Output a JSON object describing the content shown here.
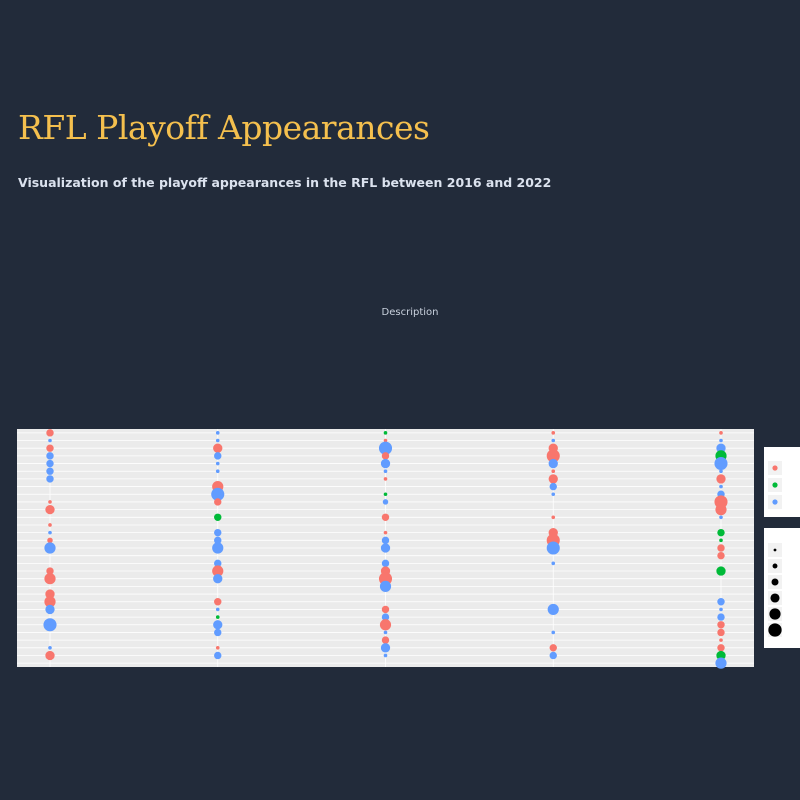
{
  "page": {
    "title": "RFL Playoff Appearances",
    "subtitle": "Visualization of the playoff appearances in the RFL between 2016 and 2022",
    "description": "Description"
  },
  "colors": {
    "background": "#222b3a",
    "title": "#f5c04e",
    "panel": "#ebebeb",
    "color_a": "#f8766d",
    "color_b": "#00ba38",
    "color_c": "#619cff"
  },
  "chart_data": {
    "type": "scatter",
    "title": "",
    "xlabel": "",
    "ylabel": "",
    "x_categories": [
      "",
      "",
      "",
      "",
      ""
    ],
    "y_level_count": 31,
    "ylim": [
      0.5,
      31.5
    ],
    "grid": true,
    "legend_placement": "right",
    "color_legend": {
      "title": "",
      "entries": [
        {
          "key": "a",
          "label": "",
          "color": "#f8766d"
        },
        {
          "key": "b",
          "label": "",
          "color": "#00ba38"
        },
        {
          "key": "c",
          "label": "",
          "color": "#619cff"
        }
      ]
    },
    "size_legend": {
      "title": "",
      "entries": [
        {
          "label": "",
          "size": 1
        },
        {
          "label": "",
          "size": 2
        },
        {
          "label": "",
          "size": 3
        },
        {
          "label": "",
          "size": 4
        },
        {
          "label": "",
          "size": 5
        },
        {
          "label": "",
          "size": 6
        }
      ]
    },
    "points": [
      {
        "x": 1,
        "y": 31,
        "c": "a",
        "s": 3
      },
      {
        "x": 1,
        "y": 30,
        "c": "c",
        "s": 1
      },
      {
        "x": 1,
        "y": 29,
        "c": "a",
        "s": 3
      },
      {
        "x": 1,
        "y": 28,
        "c": "c",
        "s": 3
      },
      {
        "x": 1,
        "y": 27,
        "c": "c",
        "s": 3
      },
      {
        "x": 1,
        "y": 26,
        "c": "c",
        "s": 3
      },
      {
        "x": 1,
        "y": 25,
        "c": "c",
        "s": 3
      },
      {
        "x": 1,
        "y": 22,
        "c": "a",
        "s": 1
      },
      {
        "x": 1,
        "y": 21,
        "c": "a",
        "s": 4
      },
      {
        "x": 1,
        "y": 19,
        "c": "a",
        "s": 1
      },
      {
        "x": 1,
        "y": 18,
        "c": "c",
        "s": 1
      },
      {
        "x": 1,
        "y": 17,
        "c": "a",
        "s": 2
      },
      {
        "x": 1,
        "y": 16,
        "c": "c",
        "s": 5
      },
      {
        "x": 1,
        "y": 13,
        "c": "a",
        "s": 3
      },
      {
        "x": 1,
        "y": 12,
        "c": "a",
        "s": 5
      },
      {
        "x": 1,
        "y": 10,
        "c": "a",
        "s": 4
      },
      {
        "x": 1,
        "y": 9,
        "c": "a",
        "s": 5
      },
      {
        "x": 1,
        "y": 8,
        "c": "c",
        "s": 4
      },
      {
        "x": 1,
        "y": 6,
        "c": "c",
        "s": 6
      },
      {
        "x": 1,
        "y": 3,
        "c": "c",
        "s": 1
      },
      {
        "x": 1,
        "y": 2,
        "c": "a",
        "s": 4
      },
      {
        "x": 2,
        "y": 31,
        "c": "c",
        "s": 1
      },
      {
        "x": 2,
        "y": 30,
        "c": "c",
        "s": 1
      },
      {
        "x": 2,
        "y": 29,
        "c": "a",
        "s": 4
      },
      {
        "x": 2,
        "y": 28,
        "c": "c",
        "s": 3
      },
      {
        "x": 2,
        "y": 27,
        "c": "c",
        "s": 1
      },
      {
        "x": 2,
        "y": 26,
        "c": "c",
        "s": 1
      },
      {
        "x": 2,
        "y": 24,
        "c": "a",
        "s": 5
      },
      {
        "x": 2,
        "y": 23,
        "c": "c",
        "s": 6
      },
      {
        "x": 2,
        "y": 22,
        "c": "a",
        "s": 3
      },
      {
        "x": 2,
        "y": 20,
        "c": "b",
        "s": 3
      },
      {
        "x": 2,
        "y": 18,
        "c": "c",
        "s": 3
      },
      {
        "x": 2,
        "y": 17,
        "c": "c",
        "s": 3
      },
      {
        "x": 2,
        "y": 16,
        "c": "c",
        "s": 5
      },
      {
        "x": 2,
        "y": 14,
        "c": "c",
        "s": 3
      },
      {
        "x": 2,
        "y": 13,
        "c": "a",
        "s": 5
      },
      {
        "x": 2,
        "y": 12,
        "c": "c",
        "s": 4
      },
      {
        "x": 2,
        "y": 9,
        "c": "a",
        "s": 3
      },
      {
        "x": 2,
        "y": 8,
        "c": "c",
        "s": 1
      },
      {
        "x": 2,
        "y": 7,
        "c": "b",
        "s": 1
      },
      {
        "x": 2,
        "y": 6,
        "c": "c",
        "s": 4
      },
      {
        "x": 2,
        "y": 5,
        "c": "c",
        "s": 3
      },
      {
        "x": 2,
        "y": 3,
        "c": "a",
        "s": 1
      },
      {
        "x": 2,
        "y": 2,
        "c": "c",
        "s": 3
      },
      {
        "x": 3,
        "y": 31,
        "c": "b",
        "s": 1
      },
      {
        "x": 3,
        "y": 30,
        "c": "a",
        "s": 1
      },
      {
        "x": 3,
        "y": 29,
        "c": "c",
        "s": 6
      },
      {
        "x": 3,
        "y": 28,
        "c": "a",
        "s": 3
      },
      {
        "x": 3,
        "y": 27,
        "c": "c",
        "s": 4
      },
      {
        "x": 3,
        "y": 26,
        "c": "c",
        "s": 1
      },
      {
        "x": 3,
        "y": 25,
        "c": "a",
        "s": 1
      },
      {
        "x": 3,
        "y": 23,
        "c": "b",
        "s": 1
      },
      {
        "x": 3,
        "y": 22,
        "c": "c",
        "s": 2
      },
      {
        "x": 3,
        "y": 20,
        "c": "a",
        "s": 3
      },
      {
        "x": 3,
        "y": 18,
        "c": "a",
        "s": 1
      },
      {
        "x": 3,
        "y": 17,
        "c": "c",
        "s": 3
      },
      {
        "x": 3,
        "y": 16,
        "c": "c",
        "s": 4
      },
      {
        "x": 3,
        "y": 14,
        "c": "c",
        "s": 3
      },
      {
        "x": 3,
        "y": 13,
        "c": "a",
        "s": 4
      },
      {
        "x": 3,
        "y": 12,
        "c": "a",
        "s": 6
      },
      {
        "x": 3,
        "y": 11,
        "c": "c",
        "s": 5
      },
      {
        "x": 3,
        "y": 8,
        "c": "a",
        "s": 3
      },
      {
        "x": 3,
        "y": 7,
        "c": "c",
        "s": 3
      },
      {
        "x": 3,
        "y": 6,
        "c": "a",
        "s": 5
      },
      {
        "x": 3,
        "y": 5,
        "c": "c",
        "s": 1
      },
      {
        "x": 3,
        "y": 4,
        "c": "a",
        "s": 3
      },
      {
        "x": 3,
        "y": 3,
        "c": "c",
        "s": 4
      },
      {
        "x": 3,
        "y": 2,
        "c": "c",
        "s": 1
      },
      {
        "x": 4,
        "y": 31,
        "c": "a",
        "s": 1
      },
      {
        "x": 4,
        "y": 30,
        "c": "c",
        "s": 1
      },
      {
        "x": 4,
        "y": 29,
        "c": "a",
        "s": 4
      },
      {
        "x": 4,
        "y": 28,
        "c": "a",
        "s": 6
      },
      {
        "x": 4,
        "y": 27,
        "c": "c",
        "s": 4
      },
      {
        "x": 4,
        "y": 26,
        "c": "a",
        "s": 1
      },
      {
        "x": 4,
        "y": 25,
        "c": "a",
        "s": 4
      },
      {
        "x": 4,
        "y": 24,
        "c": "c",
        "s": 3
      },
      {
        "x": 4,
        "y": 23,
        "c": "c",
        "s": 1
      },
      {
        "x": 4,
        "y": 20,
        "c": "a",
        "s": 1
      },
      {
        "x": 4,
        "y": 18,
        "c": "a",
        "s": 4
      },
      {
        "x": 4,
        "y": 17,
        "c": "a",
        "s": 6
      },
      {
        "x": 4,
        "y": 16,
        "c": "c",
        "s": 6
      },
      {
        "x": 4,
        "y": 14,
        "c": "c",
        "s": 1
      },
      {
        "x": 4,
        "y": 8,
        "c": "c",
        "s": 5
      },
      {
        "x": 4,
        "y": 5,
        "c": "c",
        "s": 1
      },
      {
        "x": 4,
        "y": 3,
        "c": "a",
        "s": 3
      },
      {
        "x": 4,
        "y": 2,
        "c": "c",
        "s": 3
      },
      {
        "x": 5,
        "y": 31,
        "c": "a",
        "s": 1
      },
      {
        "x": 5,
        "y": 30,
        "c": "c",
        "s": 1
      },
      {
        "x": 5,
        "y": 29,
        "c": "c",
        "s": 4
      },
      {
        "x": 5,
        "y": 28,
        "c": "b",
        "s": 5
      },
      {
        "x": 5,
        "y": 27,
        "c": "c",
        "s": 6
      },
      {
        "x": 5,
        "y": 26,
        "c": "c",
        "s": 1
      },
      {
        "x": 5,
        "y": 25,
        "c": "a",
        "s": 4
      },
      {
        "x": 5,
        "y": 24,
        "c": "c",
        "s": 1
      },
      {
        "x": 5,
        "y": 23,
        "c": "c",
        "s": 3
      },
      {
        "x": 5,
        "y": 22,
        "c": "a",
        "s": 6
      },
      {
        "x": 5,
        "y": 21,
        "c": "a",
        "s": 5
      },
      {
        "x": 5,
        "y": 20,
        "c": "c",
        "s": 1
      },
      {
        "x": 5,
        "y": 18,
        "c": "b",
        "s": 3
      },
      {
        "x": 5,
        "y": 17,
        "c": "b",
        "s": 1
      },
      {
        "x": 5,
        "y": 16,
        "c": "a",
        "s": 3
      },
      {
        "x": 5,
        "y": 15,
        "c": "a",
        "s": 3
      },
      {
        "x": 5,
        "y": 13,
        "c": "b",
        "s": 4
      },
      {
        "x": 5,
        "y": 9,
        "c": "c",
        "s": 3
      },
      {
        "x": 5,
        "y": 8,
        "c": "c",
        "s": 1
      },
      {
        "x": 5,
        "y": 7,
        "c": "c",
        "s": 3
      },
      {
        "x": 5,
        "y": 6,
        "c": "a",
        "s": 3
      },
      {
        "x": 5,
        "y": 5,
        "c": "a",
        "s": 3
      },
      {
        "x": 5,
        "y": 4,
        "c": "a",
        "s": 1
      },
      {
        "x": 5,
        "y": 3,
        "c": "a",
        "s": 3
      },
      {
        "x": 5,
        "y": 2,
        "c": "b",
        "s": 4
      },
      {
        "x": 5,
        "y": 1,
        "c": "c",
        "s": 5
      }
    ]
  }
}
